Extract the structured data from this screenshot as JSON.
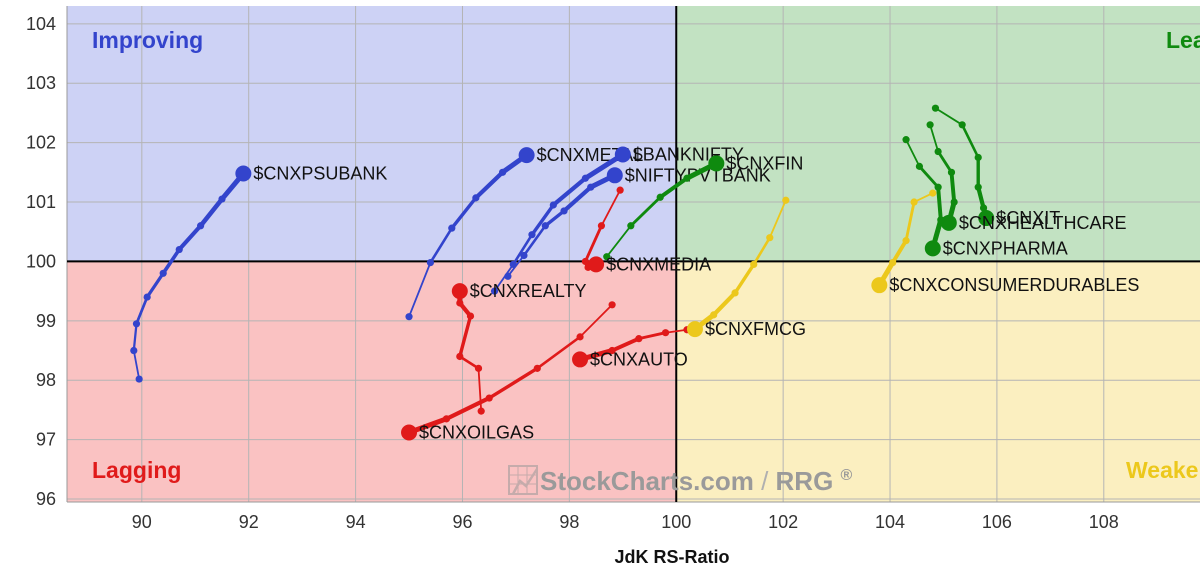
{
  "chart_data": {
    "type": "scatter",
    "subtype": "relative-rotation-graph",
    "xlabel": "JdK RS-Ratio",
    "ylabel": "",
    "xlim": [
      88.6,
      109.8
    ],
    "ylim": [
      95.95,
      104.3
    ],
    "x_ticks": [
      "90",
      "92",
      "94",
      "96",
      "98",
      "100",
      "102",
      "104",
      "106",
      "108"
    ],
    "y_ticks": [
      "96",
      "97",
      "98",
      "99",
      "100",
      "101",
      "102",
      "103",
      "104"
    ],
    "grid": true,
    "quadrants": {
      "improving": {
        "label": "Improving",
        "color": "#3344cc",
        "fill": "#cdd2f5"
      },
      "leading": {
        "label": "Leading",
        "color": "#0f8a0f",
        "fill": "#c2e2c2"
      },
      "lagging": {
        "label": "Lagging",
        "color": "#e01a1a",
        "fill": "#fac2c2"
      },
      "weakening": {
        "label": "Weakening",
        "color": "#ecc81c",
        "fill": "#fbefc0"
      }
    },
    "series": [
      {
        "name": "$CNXPSUBANK",
        "color": "#3344cc",
        "points": [
          [
            89.95,
            98.02
          ],
          [
            89.85,
            98.5
          ],
          [
            89.9,
            98.95
          ],
          [
            90.1,
            99.4
          ],
          [
            90.4,
            99.8
          ],
          [
            90.7,
            100.2
          ],
          [
            91.1,
            100.6
          ],
          [
            91.5,
            101.05
          ],
          [
            91.9,
            101.48
          ]
        ]
      },
      {
        "name": "$CNXMETAL",
        "color": "#3344cc",
        "points": [
          [
            95.0,
            99.07
          ],
          [
            95.4,
            99.98
          ],
          [
            95.8,
            100.56
          ],
          [
            96.25,
            101.07
          ],
          [
            96.75,
            101.5
          ],
          [
            97.2,
            101.79
          ]
        ]
      },
      {
        "name": "$BANKNIFTY",
        "color": "#3344cc",
        "points": [
          [
            96.6,
            99.5
          ],
          [
            96.95,
            99.95
          ],
          [
            97.3,
            100.45
          ],
          [
            97.7,
            100.95
          ],
          [
            98.3,
            101.4
          ],
          [
            99.0,
            101.8
          ]
        ]
      },
      {
        "name": "$NIFTYPVTBANK",
        "color": "#3344cc",
        "points": [
          [
            96.85,
            99.75
          ],
          [
            97.15,
            100.1
          ],
          [
            97.55,
            100.6
          ],
          [
            97.9,
            100.85
          ],
          [
            98.4,
            101.25
          ],
          [
            98.85,
            101.45
          ]
        ]
      },
      {
        "name": "$CNXFIN",
        "color": "#0f8a0f",
        "points": [
          [
            98.7,
            100.08
          ],
          [
            99.15,
            100.6
          ],
          [
            99.7,
            101.08
          ],
          [
            100.2,
            101.4
          ],
          [
            100.75,
            101.65
          ]
        ]
      },
      {
        "name": "$CNXMEDIA",
        "color": "#e01a1a",
        "points": [
          [
            98.95,
            101.2
          ],
          [
            98.6,
            100.6
          ],
          [
            98.3,
            100.0
          ],
          [
            98.35,
            99.9
          ],
          [
            98.5,
            99.95
          ]
        ]
      },
      {
        "name": "$CNXREALTY",
        "color": "#e01a1a",
        "points": [
          [
            96.35,
            97.48
          ],
          [
            96.3,
            98.2
          ],
          [
            95.95,
            98.4
          ],
          [
            96.15,
            99.08
          ],
          [
            95.95,
            99.3
          ],
          [
            95.95,
            99.5
          ]
        ]
      },
      {
        "name": "$CNXOILGAS",
        "color": "#e01a1a",
        "points": [
          [
            98.8,
            99.27
          ],
          [
            98.2,
            98.73
          ],
          [
            97.4,
            98.2
          ],
          [
            96.5,
            97.7
          ],
          [
            95.7,
            97.35
          ],
          [
            95.0,
            97.12
          ]
        ]
      },
      {
        "name": "$CNXAUTO",
        "color": "#e01a1a",
        "points": [
          [
            100.2,
            98.85
          ],
          [
            99.8,
            98.8
          ],
          [
            99.3,
            98.7
          ],
          [
            98.8,
            98.5
          ],
          [
            98.2,
            98.35
          ]
        ]
      },
      {
        "name": "$CNXFMCG",
        "color": "#ecc81c",
        "points": [
          [
            102.05,
            101.03
          ],
          [
            101.75,
            100.4
          ],
          [
            101.45,
            99.95
          ],
          [
            101.1,
            99.47
          ],
          [
            100.7,
            99.1
          ],
          [
            100.35,
            98.86
          ]
        ]
      },
      {
        "name": "$CNXCONSUMERDURABLES",
        "color": "#ecc81c",
        "points": [
          [
            104.8,
            101.15
          ],
          [
            104.45,
            101.0
          ],
          [
            104.3,
            100.35
          ],
          [
            104.05,
            99.98
          ],
          [
            103.8,
            99.6
          ]
        ]
      },
      {
        "name": "$CNXIT",
        "color": "#0f8a0f",
        "points": [
          [
            104.85,
            102.58
          ],
          [
            105.35,
            102.3
          ],
          [
            105.65,
            101.75
          ],
          [
            105.65,
            101.25
          ],
          [
            105.75,
            100.9
          ],
          [
            105.8,
            100.73
          ]
        ]
      },
      {
        "name": "$CNXHEALTHCARE",
        "color": "#0f8a0f",
        "points": [
          [
            104.75,
            102.3
          ],
          [
            104.9,
            101.85
          ],
          [
            105.15,
            101.5
          ],
          [
            105.2,
            101.0
          ],
          [
            105.1,
            100.65
          ]
        ]
      },
      {
        "name": "$CNXPHARMA",
        "color": "#0f8a0f",
        "points": [
          [
            104.3,
            102.05
          ],
          [
            104.55,
            101.6
          ],
          [
            104.9,
            101.25
          ],
          [
            104.95,
            100.7
          ],
          [
            104.8,
            100.22
          ]
        ]
      }
    ],
    "watermark": {
      "brand": "StockCharts.com",
      "suffix": "RRG",
      "symbol": "®"
    }
  }
}
